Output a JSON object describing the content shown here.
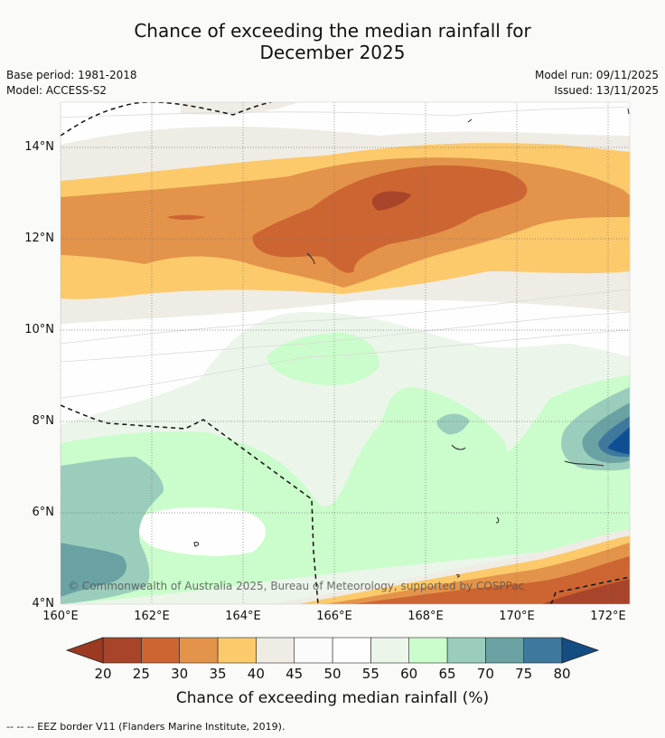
{
  "title_line1": "Chance of exceeding the median rainfall for",
  "title_line2": "December 2025",
  "base_period": "Base period: 1981-2018",
  "model": "Model: ACCESS-S2",
  "model_run": "Model run: 09/11/2025",
  "issued": "Issued: 13/11/2025",
  "lat_labels": [
    "14°N",
    "12°N",
    "10°N",
    "8°N",
    "6°N",
    "4°N"
  ],
  "lon_labels": [
    "160°E",
    "162°E",
    "164°E",
    "166°E",
    "168°E",
    "170°E",
    "172°E"
  ],
  "copyright": "© Commonwealth of Australia 2025, Bureau of Meteorology, supported by COSPPac",
  "colorbar": {
    "ticks": [
      "20",
      "25",
      "30",
      "35",
      "40",
      "45",
      "50",
      "55",
      "60",
      "65",
      "70",
      "75",
      "80"
    ],
    "colors": [
      "#a8442a",
      "#cd6532",
      "#e3934a",
      "#fcca6a",
      "#efebe5",
      "#fbfbfb",
      "#fefefe",
      "#ebf5ea",
      "#cbfccb",
      "#9acdbb",
      "#6aa2a4",
      "#3e789d",
      "#0e4f93"
    ],
    "title": "Chance of exceeding median rainfall (%)"
  },
  "legend": "--  --  -- EEZ border V11 (Flanders Marine Institute, 2019)."
}
